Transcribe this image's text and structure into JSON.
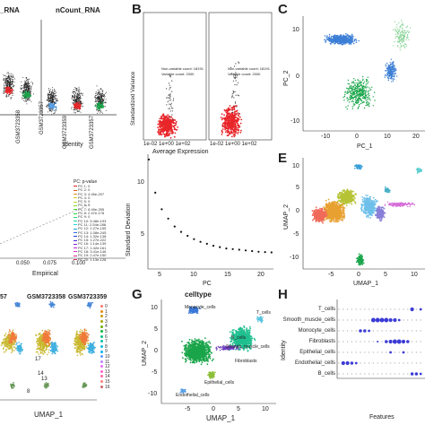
{
  "panels": {
    "A": {
      "label": "A",
      "title_left": "_RNA",
      "title_right": "nCount_RNA",
      "xlabel": "Identity",
      "ticks": [
        "GSM3723357",
        "GSM3723358",
        "GSM3723359"
      ]
    },
    "B": {
      "label": "B",
      "ylabel": "Standardized Variance",
      "xlabel": "Average Expression",
      "x_ticks": "1e-02 1e+00 1e+02",
      "legend_1": "Non-variable count: 18191",
      "legend_2": "Variable count: 2000"
    },
    "C": {
      "label": "C",
      "xlabel": "PC_1",
      "ylabel": "PC_2",
      "x_ticks": [
        "-10",
        "0",
        "10",
        "20"
      ],
      "y_ticks": [
        "10",
        "0",
        "-10"
      ]
    },
    "D": {
      "xlabel": "Empirical",
      "x_ticks": [
        "0.050",
        "0.075",
        "0.100"
      ],
      "legend_title": "PC: p-value",
      "legend": [
        "PC 1: 0",
        "PC 2: 0",
        "PC 3: 4.45e-207",
        "PC 4: 0",
        "PC 5: 0",
        "PC 6: 0",
        "PC 7: 6.49e-255",
        "PC 8: 2.47e-178",
        "PC 9: 0",
        "PC 10: 5.48e-193",
        "PC 11: 2.54e-288",
        "PC 12: 1.27e-155",
        "PC 13: 1.08e-245",
        "PC 14: 1.32e-138",
        "PC 15: 1.27e-222",
        "PC 16: 1.14e-139",
        "PC 17: 1.42e-161",
        "PC 18: 3.41e-146",
        "PC 19: 2.47e-150",
        "PC 20: 1.13e-128"
      ]
    },
    "elbow": {
      "ylabel": "Standard Deviation",
      "xlabel": "PC",
      "x_ticks": [
        "5",
        "10",
        "15",
        "20"
      ],
      "y_ticks": [
        "10",
        "5"
      ]
    },
    "E": {
      "label": "E",
      "xlabel": "UMAP_1",
      "ylabel": "UMAP_2",
      "x_ticks": [
        "-5",
        "0",
        "5",
        "10"
      ],
      "y_ticks": [
        "10",
        "5",
        "0",
        "-5",
        "-10"
      ]
    },
    "F": {
      "titles": [
        "57",
        "GSM3723358",
        "GSM3723359"
      ],
      "xlabel": "UMAP_1",
      "legend": [
        "0",
        "1",
        "2",
        "3",
        "4",
        "5",
        "6",
        "7",
        "8",
        "9",
        "10",
        "11",
        "12",
        "13",
        "14",
        "15",
        "16"
      ],
      "cluster_labels": [
        "17",
        "14",
        "13",
        "8"
      ]
    },
    "G": {
      "label": "G",
      "title": "celltype",
      "xlabel": "UMAP_1",
      "ylabel": "UMAP_2",
      "x_ticks": [
        "-5",
        "0",
        "5",
        "10"
      ],
      "y_ticks": [
        "10",
        "5",
        "0",
        "-5",
        "-10"
      ],
      "labels": [
        "Monocyte_cells",
        "B_cells",
        "T_cells",
        "Fibroblasts",
        "Epithelial_cells",
        "Endothelial_cells",
        "Smooth_muscle_cells"
      ]
    },
    "H": {
      "label": "H",
      "xlabel": "Features",
      "ylabel": "Identity",
      "rows": [
        "T_cells",
        "Smooth_muscle_cells",
        "Monocyte_cells",
        "Fibroblasts",
        "Epithelial_cells",
        "Endothelial_cells",
        "B_cells"
      ]
    }
  },
  "colors": {
    "red": "#e8262a",
    "green": "#1aa54a",
    "blue": "#3d7fd6",
    "orange": "#f28c28",
    "cyan": "#19b6c9",
    "purple": "#6e3fbf",
    "dot_blue": "#3b3bd6",
    "grey": "#bdbdbd"
  }
}
